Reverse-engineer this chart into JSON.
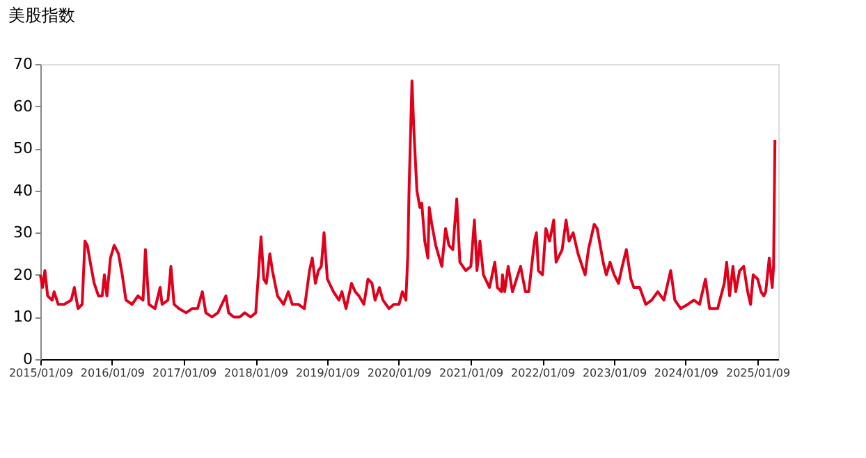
{
  "chart_data": {
    "type": "line",
    "title": "美股指数",
    "x": [
      "2015-01-09",
      "2015-01-20",
      "2015-02-01",
      "2015-02-15",
      "2015-03-10",
      "2015-03-20",
      "2015-04-10",
      "2015-05-10",
      "2015-06-15",
      "2015-07-01",
      "2015-07-20",
      "2015-08-10",
      "2015-08-24",
      "2015-09-05",
      "2015-09-20",
      "2015-10-10",
      "2015-11-01",
      "2015-11-20",
      "2015-12-01",
      "2015-12-14",
      "2016-01-01",
      "2016-01-20",
      "2016-02-11",
      "2016-03-01",
      "2016-03-20",
      "2016-04-20",
      "2016-05-20",
      "2016-06-15",
      "2016-06-27",
      "2016-07-15",
      "2016-08-15",
      "2016-09-10",
      "2016-09-20",
      "2016-10-20",
      "2016-11-04",
      "2016-11-20",
      "2016-12-15",
      "2017-01-20",
      "2017-02-20",
      "2017-03-20",
      "2017-04-13",
      "2017-05-01",
      "2017-06-01",
      "2017-07-01",
      "2017-08-11",
      "2017-08-25",
      "2017-09-20",
      "2017-10-20",
      "2017-11-15",
      "2017-12-15",
      "2018-01-10",
      "2018-02-06",
      "2018-02-20",
      "2018-03-05",
      "2018-03-23",
      "2018-04-05",
      "2018-05-01",
      "2018-06-01",
      "2018-06-25",
      "2018-07-15",
      "2018-08-15",
      "2018-09-15",
      "2018-10-11",
      "2018-10-25",
      "2018-11-10",
      "2018-11-25",
      "2018-12-10",
      "2018-12-24",
      "2019-01-10",
      "2019-02-10",
      "2019-03-10",
      "2019-03-25",
      "2019-04-15",
      "2019-05-13",
      "2019-06-01",
      "2019-06-20",
      "2019-07-15",
      "2019-08-05",
      "2019-08-25",
      "2019-09-10",
      "2019-10-02",
      "2019-10-20",
      "2019-11-20",
      "2019-12-15",
      "2020-01-10",
      "2020-01-27",
      "2020-02-14",
      "2020-02-24",
      "2020-03-01",
      "2020-03-16",
      "2020-03-25",
      "2020-04-10",
      "2020-04-25",
      "2020-05-05",
      "2020-05-20",
      "2020-06-05",
      "2020-06-12",
      "2020-06-25",
      "2020-07-15",
      "2020-08-15",
      "2020-09-03",
      "2020-09-20",
      "2020-10-10",
      "2020-10-30",
      "2020-11-15",
      "2020-12-15",
      "2021-01-10",
      "2021-01-28",
      "2021-02-10",
      "2021-02-25",
      "2021-03-15",
      "2021-04-15",
      "2021-05-12",
      "2021-05-25",
      "2021-06-15",
      "2021-06-20",
      "2021-07-01",
      "2021-07-19",
      "2021-08-10",
      "2021-09-20",
      "2021-10-15",
      "2021-11-01",
      "2021-11-30",
      "2021-12-10",
      "2021-12-20",
      "2022-01-10",
      "2022-01-27",
      "2022-02-15",
      "2022-03-08",
      "2022-03-20",
      "2022-04-20",
      "2022-05-10",
      "2022-05-25",
      "2022-06-15",
      "2022-07-10",
      "2022-08-15",
      "2022-09-01",
      "2022-09-30",
      "2022-10-15",
      "2022-11-15",
      "2022-12-01",
      "2022-12-20",
      "2023-01-10",
      "2023-02-01",
      "2023-02-20",
      "2023-03-13",
      "2023-04-05",
      "2023-04-20",
      "2023-05-20",
      "2023-06-20",
      "2023-07-20",
      "2023-08-20",
      "2023-09-20",
      "2023-10-25",
      "2023-11-15",
      "2023-12-15",
      "2024-01-20",
      "2024-02-20",
      "2024-03-20",
      "2024-04-19",
      "2024-05-10",
      "2024-06-20",
      "2024-07-24",
      "2024-08-05",
      "2024-08-20",
      "2024-09-06",
      "2024-09-20",
      "2024-10-10",
      "2024-10-31",
      "2024-11-20",
      "2024-12-05",
      "2024-12-18",
      "2025-01-10",
      "2025-01-27",
      "2025-02-10",
      "2025-02-20",
      "2025-03-10",
      "2025-03-25",
      "2025-04-01",
      "2025-04-08"
    ],
    "series": [
      {
        "color": "#e0001b",
        "values": [
          20,
          17,
          21,
          15,
          14,
          16,
          13,
          13,
          14,
          17,
          12,
          13,
          28,
          27,
          23,
          18,
          15,
          15,
          20,
          15,
          24,
          27,
          25,
          20,
          14,
          13,
          15,
          14,
          26,
          13,
          12,
          17,
          13,
          14,
          22,
          13,
          12,
          11,
          12,
          12,
          16,
          11,
          10,
          11,
          15,
          11,
          10,
          10,
          11,
          10,
          11,
          29,
          19,
          18,
          25,
          21,
          15,
          13,
          16,
          13,
          13,
          12,
          21,
          24,
          18,
          21,
          22,
          30,
          19,
          16,
          14,
          16,
          12,
          18,
          16,
          15,
          13,
          19,
          18,
          14,
          17,
          14,
          12,
          13,
          13,
          16,
          14,
          25,
          40,
          66,
          55,
          40,
          36,
          37,
          28,
          24,
          36,
          32,
          27,
          22,
          31,
          27,
          26,
          38,
          23,
          21,
          22,
          33,
          21,
          28,
          20,
          17,
          23,
          17,
          16,
          20,
          16,
          22,
          16,
          22,
          16,
          16,
          28,
          30,
          21,
          20,
          31,
          28,
          33,
          23,
          26,
          33,
          28,
          30,
          25,
          20,
          26,
          32,
          31,
          23,
          20,
          23,
          20,
          18,
          22,
          26,
          19,
          17,
          17,
          13,
          14,
          16,
          14,
          21,
          14,
          12,
          13,
          14,
          13,
          19,
          12,
          12,
          18,
          23,
          15,
          22,
          16,
          21,
          22,
          16,
          13,
          20,
          19,
          16,
          15,
          16,
          24,
          17,
          22,
          52
        ]
      }
    ],
    "xlim": [
      "2015-01-09",
      "2025-04-25"
    ],
    "xticks": [
      {
        "value": "2015-01-09",
        "label": "2015/01/09"
      },
      {
        "value": "2016-01-09",
        "label": "2016/01/09"
      },
      {
        "value": "2017-01-09",
        "label": "2017/01/09"
      },
      {
        "value": "2018-01-09",
        "label": "2018/01/09"
      },
      {
        "value": "2019-01-09",
        "label": "2019/01/09"
      },
      {
        "value": "2020-01-09",
        "label": "2020/01/09"
      },
      {
        "value": "2021-01-09",
        "label": "2021/01/09"
      },
      {
        "value": "2022-01-09",
        "label": "2022/01/09"
      },
      {
        "value": "2023-01-09",
        "label": "2023/01/09"
      },
      {
        "value": "2024-01-09",
        "label": "2024/01/09"
      },
      {
        "value": "2025-01-09",
        "label": "2025/01/09"
      }
    ],
    "ylim": [
      0,
      70
    ],
    "yticks": [
      0,
      10,
      20,
      30,
      40,
      50,
      60,
      70
    ],
    "grid": false,
    "legend": false,
    "marker": "none",
    "line_style": "solid"
  }
}
